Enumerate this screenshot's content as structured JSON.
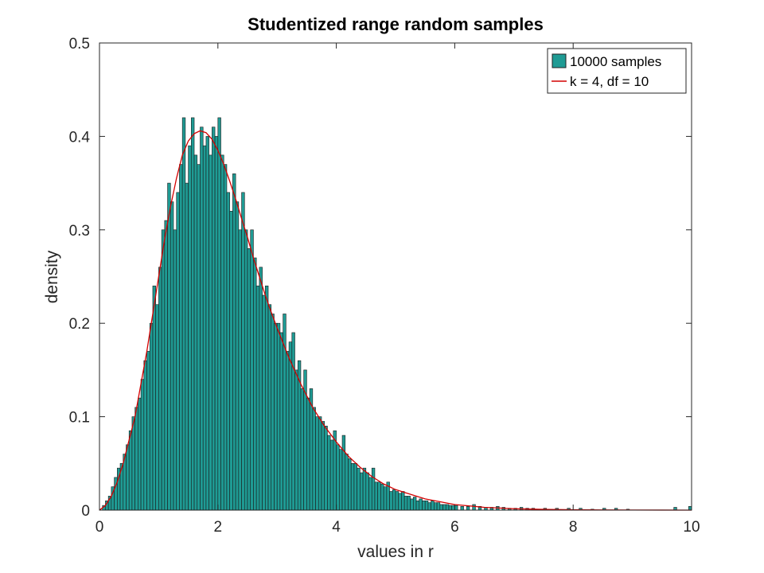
{
  "chart_data": {
    "type": "bar",
    "title": "Studentized range random samples",
    "xlabel": "values in r",
    "ylabel": "density",
    "xlim": [
      0,
      10
    ],
    "ylim": [
      0,
      0.5
    ],
    "xticks": [
      0,
      2,
      4,
      6,
      8,
      10
    ],
    "yticks": [
      0,
      0.1,
      0.2,
      0.3,
      0.4,
      0.5
    ],
    "xtick_labels": [
      "0",
      "2",
      "4",
      "6",
      "8",
      "10"
    ],
    "ytick_labels": [
      "0",
      "0.1",
      "0.2",
      "0.3",
      "0.4",
      "0.5"
    ],
    "grid": false,
    "legend_position": "top-right",
    "bin_width": 0.05,
    "series": [
      {
        "name": "10000 samples",
        "kind": "histogram",
        "color": "#1f9b94",
        "bin_starts": [
          0.05,
          0.1,
          0.15,
          0.2,
          0.25,
          0.3,
          0.35,
          0.4,
          0.45,
          0.5,
          0.55,
          0.6,
          0.65,
          0.7,
          0.75,
          0.8,
          0.85,
          0.9,
          0.95,
          1.0,
          1.05,
          1.1,
          1.15,
          1.2,
          1.25,
          1.3,
          1.35,
          1.4,
          1.45,
          1.5,
          1.55,
          1.6,
          1.65,
          1.7,
          1.75,
          1.8,
          1.85,
          1.9,
          1.95,
          2.0,
          2.05,
          2.1,
          2.15,
          2.2,
          2.25,
          2.3,
          2.35,
          2.4,
          2.45,
          2.5,
          2.55,
          2.6,
          2.65,
          2.7,
          2.75,
          2.8,
          2.85,
          2.9,
          2.95,
          3.0,
          3.05,
          3.1,
          3.15,
          3.2,
          3.25,
          3.3,
          3.35,
          3.4,
          3.45,
          3.5,
          3.55,
          3.6,
          3.65,
          3.7,
          3.75,
          3.8,
          3.85,
          3.9,
          3.95,
          4.0,
          4.05,
          4.1,
          4.15,
          4.2,
          4.25,
          4.3,
          4.35,
          4.4,
          4.45,
          4.5,
          4.55,
          4.6,
          4.65,
          4.7,
          4.75,
          4.8,
          4.85,
          4.9,
          4.95,
          5.0,
          5.05,
          5.1,
          5.15,
          5.2,
          5.25,
          5.3,
          5.35,
          5.4,
          5.45,
          5.5,
          5.55,
          5.6,
          5.65,
          5.7,
          5.75,
          5.8,
          5.85,
          5.9,
          5.95,
          6.0,
          6.1,
          6.2,
          6.3,
          6.4,
          6.5,
          6.6,
          6.7,
          6.8,
          6.9,
          7.0,
          7.1,
          7.2,
          7.3,
          7.5,
          7.7,
          7.9,
          8.1,
          8.3,
          8.5,
          8.7,
          8.9,
          9.7,
          9.95
        ],
        "values": [
          0.005,
          0.01,
          0.015,
          0.025,
          0.035,
          0.045,
          0.05,
          0.06,
          0.07,
          0.085,
          0.1,
          0.11,
          0.12,
          0.14,
          0.16,
          0.17,
          0.2,
          0.24,
          0.22,
          0.26,
          0.3,
          0.31,
          0.35,
          0.33,
          0.3,
          0.34,
          0.37,
          0.42,
          0.35,
          0.39,
          0.42,
          0.38,
          0.37,
          0.41,
          0.39,
          0.4,
          0.38,
          0.41,
          0.4,
          0.42,
          0.38,
          0.37,
          0.34,
          0.32,
          0.36,
          0.33,
          0.3,
          0.34,
          0.3,
          0.28,
          0.3,
          0.27,
          0.24,
          0.26,
          0.23,
          0.24,
          0.22,
          0.21,
          0.2,
          0.2,
          0.19,
          0.21,
          0.17,
          0.18,
          0.19,
          0.15,
          0.16,
          0.13,
          0.15,
          0.12,
          0.13,
          0.11,
          0.1,
          0.1,
          0.095,
          0.09,
          0.08,
          0.075,
          0.085,
          0.07,
          0.065,
          0.08,
          0.06,
          0.055,
          0.05,
          0.05,
          0.045,
          0.04,
          0.045,
          0.04,
          0.035,
          0.045,
          0.03,
          0.03,
          0.028,
          0.025,
          0.03,
          0.02,
          0.022,
          0.02,
          0.018,
          0.02,
          0.015,
          0.015,
          0.012,
          0.014,
          0.01,
          0.012,
          0.01,
          0.01,
          0.008,
          0.01,
          0.008,
          0.008,
          0.006,
          0.006,
          0.006,
          0.005,
          0.005,
          0.005,
          0.004,
          0.004,
          0.006,
          0.004,
          0.003,
          0.003,
          0.004,
          0.003,
          0.002,
          0.002,
          0.003,
          0.002,
          0.002,
          0.002,
          0.002,
          0.002,
          0.002,
          0.001,
          0.002,
          0.002,
          0.001,
          0.003,
          0.004
        ]
      },
      {
        "name": "k = 4, df = 10",
        "kind": "line",
        "color": "#d40000",
        "x": [
          0,
          0.1,
          0.2,
          0.3,
          0.4,
          0.5,
          0.6,
          0.7,
          0.8,
          0.9,
          1.0,
          1.1,
          1.2,
          1.3,
          1.4,
          1.5,
          1.6,
          1.7,
          1.8,
          1.9,
          2.0,
          2.1,
          2.2,
          2.3,
          2.4,
          2.5,
          2.6,
          2.7,
          2.8,
          2.9,
          3.0,
          3.2,
          3.4,
          3.6,
          3.8,
          4.0,
          4.2,
          4.4,
          4.6,
          4.8,
          5.0,
          5.5,
          6.0,
          6.5,
          7.0,
          7.5,
          8.0,
          8.5,
          9.0,
          9.5,
          10.0
        ],
        "y": [
          0,
          0.005,
          0.015,
          0.03,
          0.05,
          0.075,
          0.1,
          0.135,
          0.17,
          0.21,
          0.25,
          0.29,
          0.325,
          0.355,
          0.38,
          0.395,
          0.403,
          0.406,
          0.404,
          0.397,
          0.385,
          0.37,
          0.352,
          0.333,
          0.312,
          0.292,
          0.27,
          0.25,
          0.23,
          0.212,
          0.195,
          0.163,
          0.135,
          0.11,
          0.09,
          0.073,
          0.058,
          0.046,
          0.036,
          0.028,
          0.022,
          0.012,
          0.006,
          0.003,
          0.0015,
          0.0008,
          0.0004,
          0.0002,
          0.0001,
          5e-05,
          2e-05
        ]
      }
    ]
  }
}
